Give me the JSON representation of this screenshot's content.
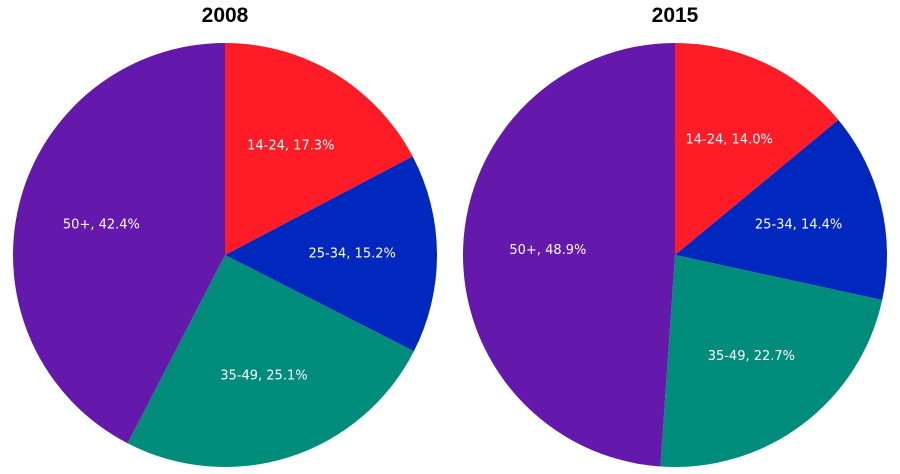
{
  "chart_data": [
    {
      "type": "pie",
      "title": "2008",
      "slices": [
        {
          "category": "14-24",
          "value": 17.3,
          "label": "14-24, 17.3%",
          "color": "#FF1C27"
        },
        {
          "category": "25-34",
          "value": 15.2,
          "label": "25-34, 15.2%",
          "color": "#0028BE"
        },
        {
          "category": "35-49",
          "value": 25.1,
          "label": "35-49, 25.1%",
          "color": "#008C7A"
        },
        {
          "category": "50+",
          "value": 42.4,
          "label": "50+, 42.4%",
          "color": "#6418AC"
        }
      ]
    },
    {
      "type": "pie",
      "title": "2015",
      "slices": [
        {
          "category": "14-24",
          "value": 14.0,
          "label": "14-24, 14.0%",
          "color": "#FF1C27"
        },
        {
          "category": "25-34",
          "value": 14.4,
          "label": "25-34, 14.4%",
          "color": "#0028BE"
        },
        {
          "category": "35-49",
          "value": 22.7,
          "label": "35-49, 22.7%",
          "color": "#008C7A"
        },
        {
          "category": "50+",
          "value": 48.9,
          "label": "50+, 48.9%",
          "color": "#6418AC"
        }
      ]
    }
  ]
}
